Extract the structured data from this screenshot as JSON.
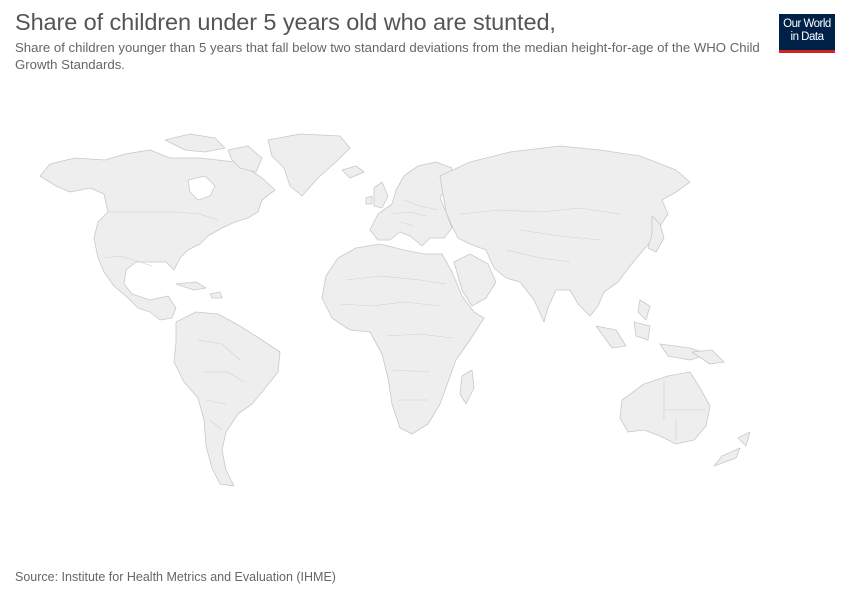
{
  "header": {
    "title": "Share of children under 5 years old who are stunted,",
    "subtitle": "Share of children younger than 5 years that fall below two standard deviations from the median height-for-age of the WHO Child Growth Standards."
  },
  "logo": {
    "line1": "Our World",
    "line2": "in Data",
    "background_color": "#002147",
    "accent_color": "#ce261e"
  },
  "map": {
    "projection": "robinson",
    "fill_color": "#eeeeee",
    "border_color": "#c8c8c8",
    "background_color": "#ffffff"
  },
  "footer": {
    "source": "Source: Institute for Health Metrics and Evaluation (IHME)"
  }
}
